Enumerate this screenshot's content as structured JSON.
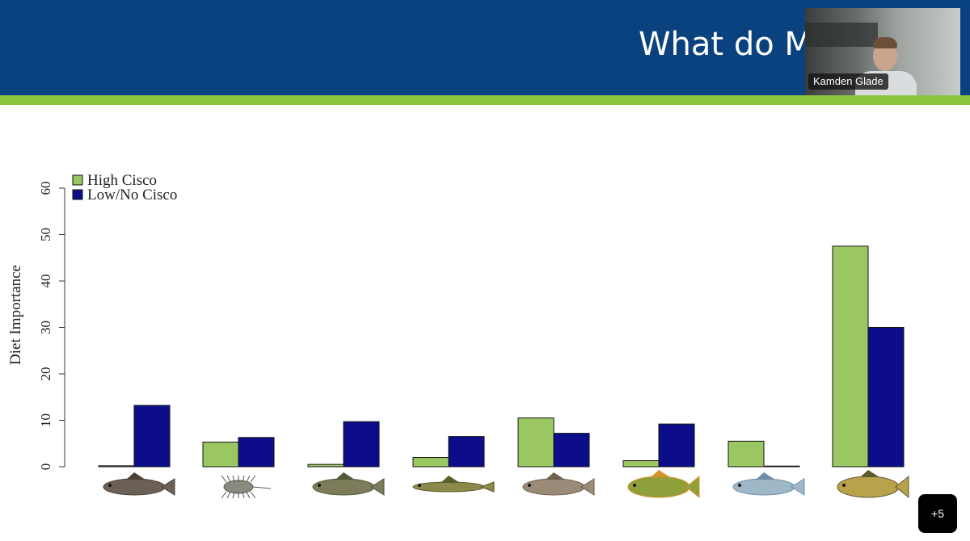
{
  "slide": {
    "title": "What do M"
  },
  "video": {
    "participant_name": "Kamden Glade",
    "extra_participants": "+5"
  },
  "colors": {
    "header": "#0a4280",
    "stripe": "#8cc63f",
    "high_cisco": "#9bc763",
    "low_cisco": "#0d0d8c"
  },
  "chart_data": {
    "type": "bar",
    "ylabel": "Diet Importance",
    "xlabel": "",
    "ylim": [
      0,
      60
    ],
    "yticks": [
      "0",
      "10",
      "20",
      "30",
      "40",
      "50",
      "60"
    ],
    "legend_position": "top-left",
    "categories": [
      "catfish-icon",
      "insect-larva-icon",
      "bass-icon",
      "pike-icon",
      "sucker-icon",
      "sunfish-icon",
      "cisco-icon",
      "perch-icon"
    ],
    "series": [
      {
        "name": "High Cisco",
        "color": "#9bc763",
        "values": [
          0.2,
          5.3,
          0.5,
          2.0,
          10.5,
          1.3,
          5.5,
          47.5
        ]
      },
      {
        "name": "Low/No Cisco",
        "color": "#0d0d8c",
        "values": [
          13.2,
          6.3,
          9.7,
          6.5,
          7.2,
          9.2,
          0.0,
          30.0
        ]
      }
    ]
  }
}
